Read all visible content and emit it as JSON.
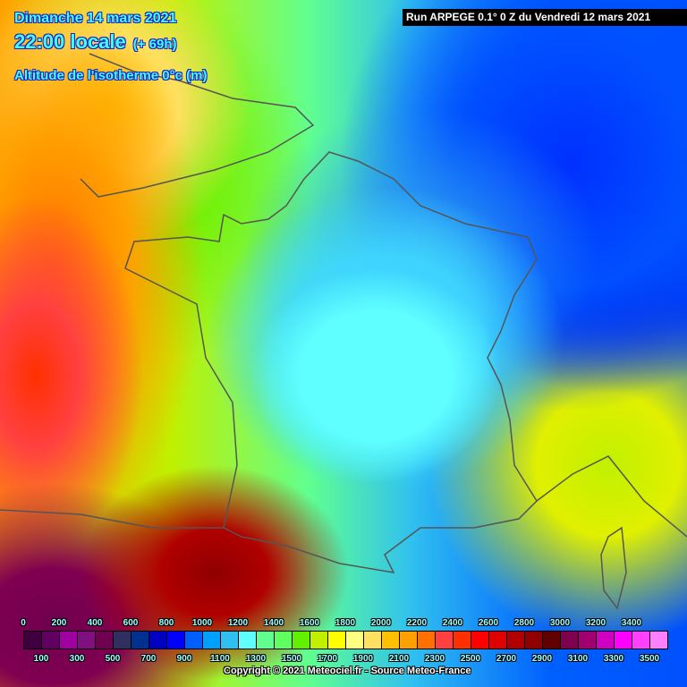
{
  "header": {
    "date": "Dimanche 14 mars 2021",
    "time": "22:00 locale",
    "offset": "(+ 69h)",
    "parameter": "Altitude de l'isotherme 0°c (m)"
  },
  "run_info": "Run ARPEGE 0.1° 0 Z du Vendredi 12 mars 2021",
  "legend": {
    "unit": "m",
    "top_labels": [
      "0",
      "200",
      "400",
      "600",
      "800",
      "1000",
      "1200",
      "1400",
      "1600",
      "1800",
      "2000",
      "2200",
      "2400",
      "2600",
      "2800",
      "3000",
      "3200",
      "3400"
    ],
    "bottom_labels": [
      "100",
      "300",
      "500",
      "700",
      "900",
      "1100",
      "1300",
      "1500",
      "1700",
      "1900",
      "2100",
      "2300",
      "2500",
      "2700",
      "2900",
      "3100",
      "3300",
      "3500"
    ],
    "colors": [
      "#400040",
      "#600060",
      "#a000a0",
      "#801080",
      "#700050",
      "#303060",
      "#003090",
      "#0000c0",
      "#0000ff",
      "#0060ff",
      "#00a0ff",
      "#30c0f0",
      "#60ffff",
      "#60ff90",
      "#60ff60",
      "#60f000",
      "#c0f000",
      "#ffff00",
      "#ffff80",
      "#ffe060",
      "#ffc000",
      "#ffa000",
      "#ff7000",
      "#ff4040",
      "#ff3000",
      "#ff0000",
      "#e00000",
      "#b00000",
      "#900000",
      "#600000",
      "#800050",
      "#a00070",
      "#d000c0",
      "#ff00ff",
      "#ff40ff",
      "#ff80ff"
    ]
  },
  "copyright": "Copyright © 2021 Meteociel.fr - Source Meteo-France"
}
